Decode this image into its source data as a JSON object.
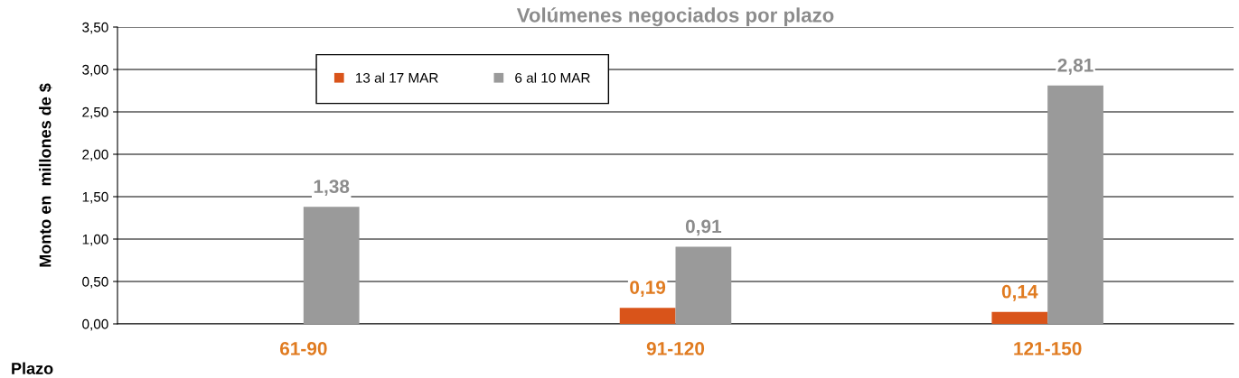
{
  "chart_data": {
    "type": "bar",
    "title": "Volúmenes negociados por plazo",
    "xlabel": "Plazo",
    "ylabel": "Monto en  millones de $",
    "categories": [
      "61-90",
      "91-120",
      "121-150"
    ],
    "series": [
      {
        "name": "13 al 17 MAR",
        "color": "#d9541a",
        "values": [
          null,
          0.19,
          0.14
        ],
        "value_labels": [
          null,
          "0,19",
          "0,14"
        ]
      },
      {
        "name": "6 al 10 MAR",
        "color": "#9a9a9a",
        "values": [
          1.38,
          0.91,
          2.81
        ],
        "value_labels": [
          "1,38",
          "0,91",
          "2,81"
        ]
      }
    ],
    "ylim": [
      0,
      3.5
    ],
    "yticks": [
      {
        "value": 0,
        "label": "0,00"
      },
      {
        "value": 0.5,
        "label": "0,50"
      },
      {
        "value": 1,
        "label": "1,00"
      },
      {
        "value": 1.5,
        "label": "1,50"
      },
      {
        "value": 2,
        "label": "2,00"
      },
      {
        "value": 2.5,
        "label": "2,50"
      },
      {
        "value": 3,
        "label": "3,00"
      },
      {
        "value": 3.5,
        "label": "3,50"
      }
    ],
    "grid": "y",
    "legend": "top"
  }
}
